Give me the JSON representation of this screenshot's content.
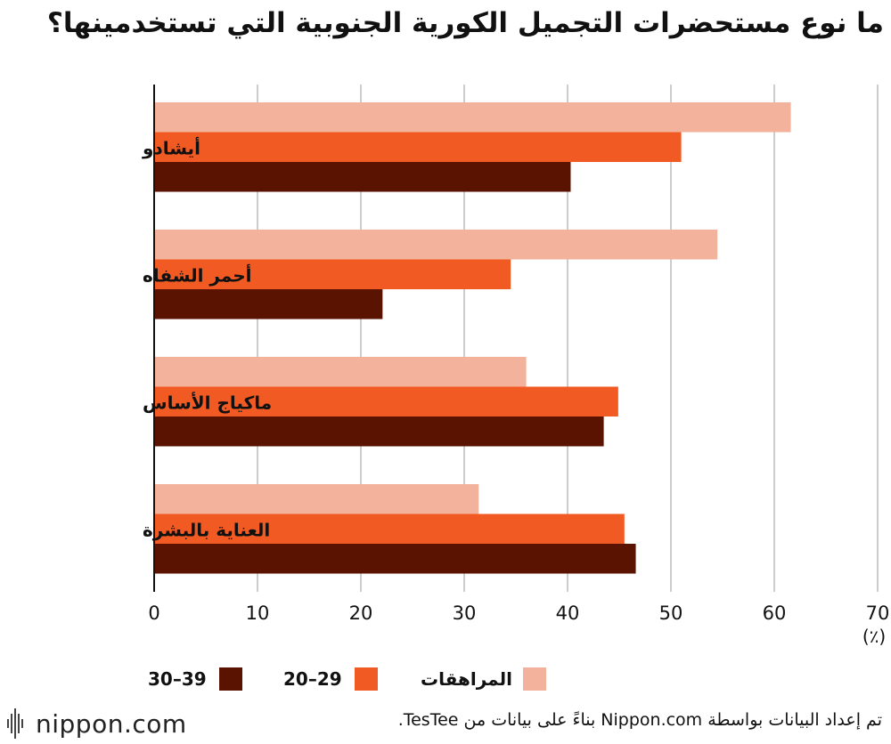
{
  "title": "ما نوع مستحضرات التجميل الكورية الجنوبية التي تستخدمينها؟",
  "chart_data": {
    "type": "bar",
    "orientation": "horizontal",
    "title": "ما نوع مستحضرات التجميل الكورية الجنوبية التي تستخدمينها؟",
    "categories": [
      "أيشادو",
      "أحمر الشفاه",
      "ماكياج الأساس",
      "العناية بالبشرة"
    ],
    "series": [
      {
        "name": "المراهقات",
        "color": "#f2b29b",
        "values": [
          61.6,
          54.5,
          36.0,
          31.4
        ]
      },
      {
        "name": "20–29",
        "color": "#f15a22",
        "values": [
          51.0,
          34.5,
          44.9,
          45.5
        ]
      },
      {
        "name": "30–39",
        "color": "#5a1300",
        "values": [
          40.3,
          22.1,
          43.5,
          46.6
        ]
      }
    ],
    "xlim": [
      0,
      70
    ],
    "xticks": [
      0,
      10,
      20,
      30,
      40,
      50,
      60,
      70
    ],
    "xlabel_unit": "(٪)",
    "grid": true,
    "legend_position": "bottom"
  },
  "legend": {
    "items": [
      {
        "label": "المراهقات",
        "color": "#f2b29b"
      },
      {
        "label": "20–29",
        "color": "#f15a22"
      },
      {
        "label": "30–39",
        "color": "#5a1300"
      }
    ]
  },
  "footer": {
    "logo": "nippon.com",
    "source": "تم إعداد البيانات بواسطة Nippon.com بناءً على بيانات من TesTee."
  }
}
